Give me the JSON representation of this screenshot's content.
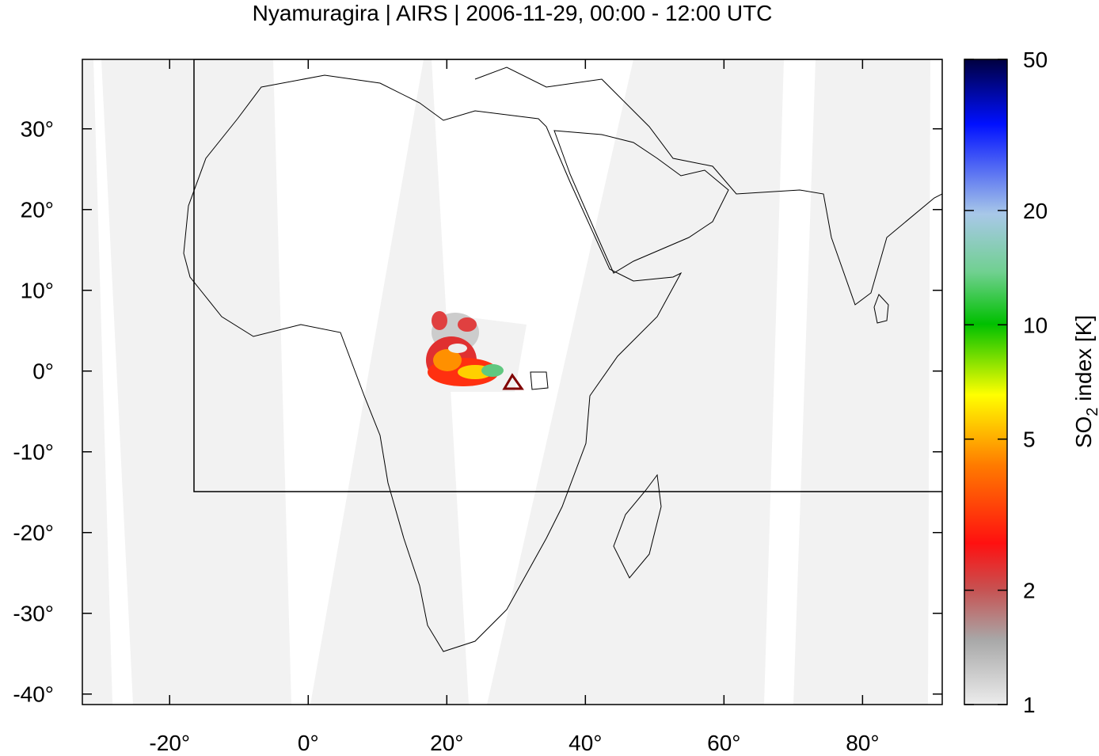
{
  "map": {
    "title": "Nyamuragira | AIRS | 2006-11-29, 00:00 - 12:00 UTC",
    "lonlim": [
      -32.6,
      91.5
    ],
    "latlim": [
      -41.3,
      38.6
    ],
    "lon_ticks": [
      {
        "value": -20,
        "label": "-20°"
      },
      {
        "value": 0,
        "label": "0°"
      },
      {
        "value": 20,
        "label": "20°"
      },
      {
        "value": 40,
        "label": "40°"
      },
      {
        "value": 60,
        "label": "60°"
      },
      {
        "value": 80,
        "label": "80°"
      }
    ],
    "lat_ticks": [
      {
        "value": 30,
        "label": "30°"
      },
      {
        "value": 20,
        "label": "20°"
      },
      {
        "value": 10,
        "label": "10°"
      },
      {
        "value": 0,
        "label": "0°"
      },
      {
        "value": -10,
        "label": "-10°"
      },
      {
        "value": -20,
        "label": "-20°"
      },
      {
        "value": -30,
        "label": "-30°"
      },
      {
        "value": -40,
        "label": "-40°"
      }
    ],
    "colorbar": {
      "label": {
        "main": "SO",
        "sub": "2",
        "rest": " index [K]"
      },
      "scale": "log",
      "range": [
        1,
        50
      ],
      "ticks": [
        1,
        2,
        5,
        10,
        20,
        50
      ]
    }
  }
}
